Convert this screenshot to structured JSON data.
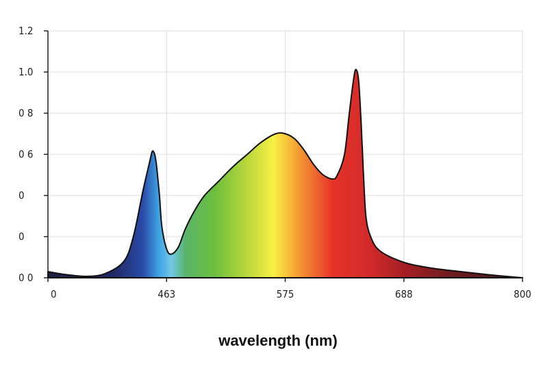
{
  "chart_data": {
    "type": "area",
    "title": "",
    "xlabel": "wavelength (nm)",
    "ylabel": "",
    "x_tick_labels": [
      "0",
      "463",
      "575",
      "688",
      "800"
    ],
    "y_tick_labels": [
      "0 0",
      "0",
      "0",
      "0 6",
      "0 8",
      "1.0",
      "1.2"
    ],
    "y_tick_values": [
      0,
      0.2,
      0.4,
      0.6,
      0.8,
      1.0,
      1.2
    ],
    "ylim": [
      0,
      1.2
    ],
    "grid": true,
    "fill": "visible-spectrum-gradient",
    "series": [
      {
        "x": [
          0,
          0.04,
          0.08,
          0.12,
          0.16,
          0.18,
          0.2,
          0.215,
          0.22,
          0.225,
          0.228,
          0.23,
          0.235,
          0.24,
          0.25,
          0.26,
          0.275,
          0.29,
          0.31,
          0.33,
          0.36,
          0.39,
          0.42,
          0.45,
          0.48,
          0.5,
          0.52,
          0.54,
          0.56,
          0.58,
          0.6,
          0.61,
          0.625,
          0.635,
          0.645,
          0.65,
          0.655,
          0.66,
          0.665,
          0.67,
          0.68,
          0.7,
          0.75,
          0.8,
          0.85,
          0.9,
          0.95,
          1.0
        ],
        "y": [
          0.03,
          0.015,
          0.007,
          0.02,
          0.08,
          0.2,
          0.42,
          0.57,
          0.615,
          0.6,
          0.56,
          0.52,
          0.4,
          0.25,
          0.14,
          0.115,
          0.15,
          0.24,
          0.33,
          0.4,
          0.47,
          0.54,
          0.6,
          0.66,
          0.7,
          0.7,
          0.675,
          0.62,
          0.55,
          0.5,
          0.48,
          0.5,
          0.6,
          0.8,
          0.98,
          1.01,
          0.95,
          0.75,
          0.5,
          0.3,
          0.2,
          0.13,
          0.075,
          0.05,
          0.035,
          0.022,
          0.01,
          0.0
        ]
      }
    ]
  }
}
